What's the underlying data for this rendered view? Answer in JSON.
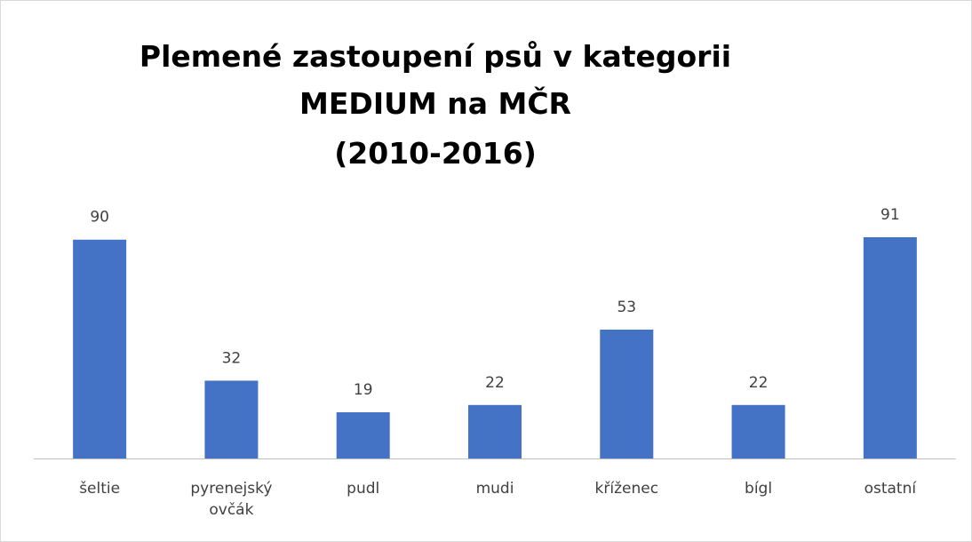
{
  "chart_data": {
    "type": "bar",
    "title": [
      "Plemené zastoupení psů v kategorii",
      "MEDIUM na MČR",
      "(2010-2016)"
    ],
    "categories": [
      "šeltie",
      "pyrenejský ovčák",
      "pudl",
      "mudi",
      "kříženec",
      "bígl",
      "ostatní"
    ],
    "values": [
      90,
      32,
      19,
      22,
      53,
      22,
      91
    ],
    "color": "#4472c4"
  }
}
